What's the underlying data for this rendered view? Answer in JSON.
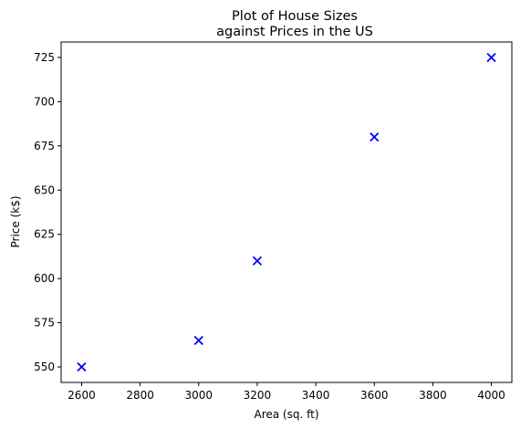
{
  "chart_data": {
    "type": "scatter",
    "title_lines": [
      "Plot of House Sizes",
      "against Prices in the US"
    ],
    "xlabel": "Area (sq. ft)",
    "ylabel": "Price (k$)",
    "xlim": [
      2530,
      4070
    ],
    "ylim": [
      541.25,
      733.75
    ],
    "xticks": [
      2600,
      2800,
      3000,
      3200,
      3400,
      3600,
      3800,
      4000
    ],
    "yticks": [
      550,
      575,
      600,
      625,
      650,
      675,
      700,
      725
    ],
    "marker": "x",
    "marker_color": "#0000ff",
    "grid": false,
    "points": [
      {
        "x": 2600,
        "y": 550
      },
      {
        "x": 3000,
        "y": 565
      },
      {
        "x": 3200,
        "y": 610
      },
      {
        "x": 3600,
        "y": 680
      },
      {
        "x": 4000,
        "y": 725
      }
    ]
  }
}
